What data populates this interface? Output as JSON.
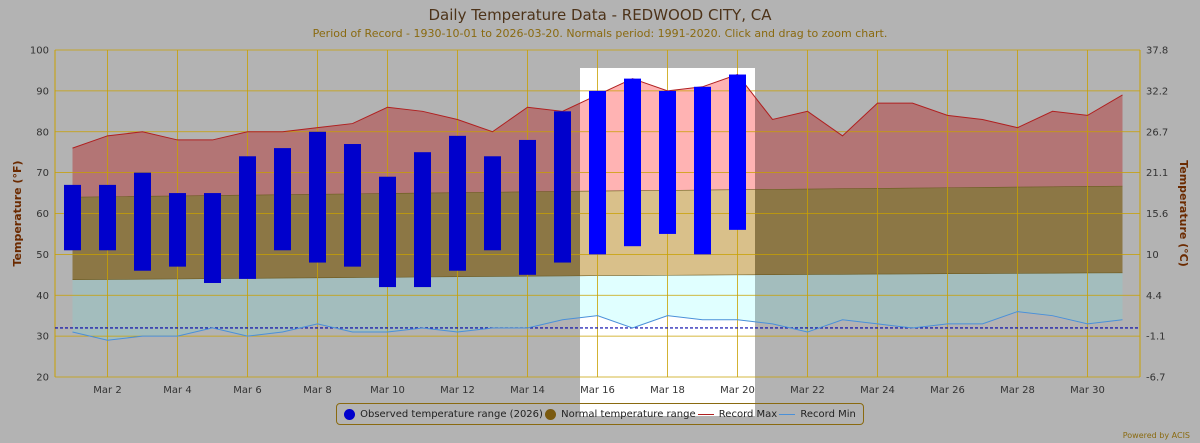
{
  "chart_data": {
    "type": "range-bar-area",
    "title": "Daily Temperature Data - REDWOOD CITY, CA",
    "subtitle": "Period of Record - 1930-10-01 to 2026-03-20. Normals period: 1991-2020. Click and drag to zoom chart.",
    "ylabel_left": "Temperature (°F)",
    "ylabel_right": "Temperature (°C)",
    "ylim": [
      20,
      100
    ],
    "y_ticks": [
      20,
      30,
      40,
      50,
      60,
      70,
      80,
      90,
      100
    ],
    "y_ticks_right": [
      "-6.7",
      "-1.1",
      "4.4",
      "10",
      "15.6",
      "21.1",
      "26.7",
      "32.2",
      "37.8"
    ],
    "x_days": [
      1,
      31
    ],
    "x_tick_labels": [
      {
        "day": 2,
        "label": "Mar 2"
      },
      {
        "day": 4,
        "label": "Mar 4"
      },
      {
        "day": 6,
        "label": "Mar 6"
      },
      {
        "day": 8,
        "label": "Mar 8"
      },
      {
        "day": 10,
        "label": "Mar 10"
      },
      {
        "day": 12,
        "label": "Mar 12"
      },
      {
        "day": 14,
        "label": "Mar 14"
      },
      {
        "day": 16,
        "label": "Mar 16"
      },
      {
        "day": 18,
        "label": "Mar 18"
      },
      {
        "day": 20,
        "label": "Mar 20"
      },
      {
        "day": 22,
        "label": "Mar 22"
      },
      {
        "day": 24,
        "label": "Mar 24"
      },
      {
        "day": 26,
        "label": "Mar 26"
      },
      {
        "day": 28,
        "label": "Mar 28"
      },
      {
        "day": 30,
        "label": "Mar 30"
      }
    ],
    "highlight_days": [
      15.5,
      20.5
    ],
    "freezing_line": 32,
    "observed": {
      "name": "Observed temperature range (2026)",
      "color": "#0000cc",
      "color_highlight": "#0000ff",
      "days": [
        1,
        2,
        3,
        4,
        5,
        6,
        7,
        8,
        9,
        10,
        11,
        12,
        13,
        14,
        15,
        16,
        17,
        18,
        19,
        20
      ],
      "lows": [
        51,
        51,
        46,
        47,
        43,
        44,
        51,
        48,
        47,
        42,
        42,
        46,
        51,
        45,
        48,
        50,
        52,
        55,
        50,
        56
      ],
      "highs": [
        67,
        67,
        70,
        65,
        65,
        74,
        76,
        80,
        77,
        69,
        75,
        79,
        74,
        78,
        85,
        90,
        93,
        90,
        91,
        94
      ]
    },
    "normal": {
      "name": "Normal temperature range",
      "color": "#7a5a10",
      "days": [
        1,
        16,
        31
      ],
      "lows": [
        43.8,
        44.8,
        45.5
      ],
      "highs": [
        64.0,
        65.5,
        66.7
      ]
    },
    "record_max": {
      "name": "Record Max",
      "color": "#b02020",
      "days": [
        1,
        2,
        3,
        4,
        5,
        6,
        7,
        8,
        9,
        10,
        11,
        12,
        13,
        14,
        15,
        16,
        17,
        18,
        19,
        20,
        21,
        22,
        23,
        24,
        25,
        26,
        27,
        28,
        29,
        30,
        31
      ],
      "values": [
        76,
        79,
        80,
        78,
        78,
        80,
        80,
        81,
        82,
        86,
        85,
        83,
        80,
        86,
        85,
        89,
        93,
        90,
        91,
        94,
        83,
        85,
        79,
        87,
        87,
        84,
        83,
        81,
        85,
        84,
        89
      ]
    },
    "record_min": {
      "name": "Record Min",
      "color": "#4a90d9",
      "days": [
        1,
        2,
        3,
        4,
        5,
        6,
        7,
        8,
        9,
        10,
        11,
        12,
        13,
        14,
        15,
        16,
        17,
        18,
        19,
        20,
        21,
        22,
        23,
        24,
        25,
        26,
        27,
        28,
        29,
        30,
        31
      ],
      "values": [
        31,
        29,
        30,
        30,
        32,
        30,
        31,
        33,
        31,
        31,
        32,
        31,
        32,
        32,
        34,
        35,
        32,
        35,
        34,
        34,
        33,
        31,
        34,
        33,
        32,
        33,
        33,
        36,
        35,
        33,
        34
      ]
    }
  },
  "legend": {
    "observed": "Observed temperature range (2026)",
    "normal": "Normal temperature range",
    "record_max": "Record Max",
    "record_min": "Record Min"
  },
  "credit": "Powered by ACIS",
  "colors": {
    "background": "#b3b3b3",
    "grid": "#c8a000",
    "record_fill": "#b37575",
    "record_fill_highlight": "#ffb3b3",
    "normal_fill": "#8c7745",
    "normal_fill_highlight": "#d9c08a",
    "low_fill": "#a3bdbd",
    "low_fill_highlight": "#e0ffff"
  }
}
